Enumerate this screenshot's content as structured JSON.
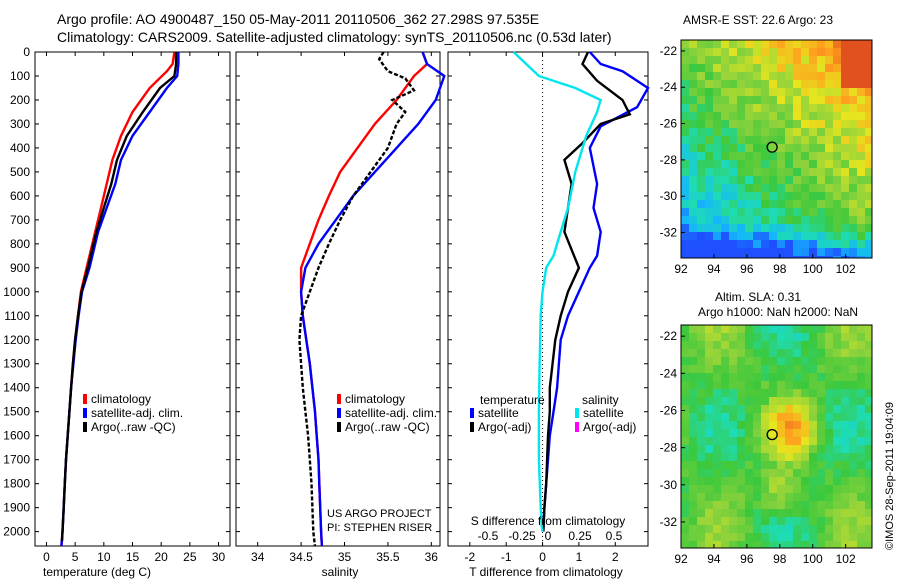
{
  "header": {
    "line1": "Argo profile: AO 4900487_150 05-May-2011 20110506_362 27.298S 97.535E",
    "line2": "Climatology: CARS2009. Satellite-adjusted climatology: synTS_20110506.nc (0.53d later)"
  },
  "side_label": "©IMOS 28-Sep-2011 19:04:09",
  "colors": {
    "climatology": "#ff0000",
    "satellite": "#0000ff",
    "argo": "#000000",
    "satellite_salinity": "#00e5ee",
    "argo_adj_salinity": "#ff00ff"
  },
  "depth_axis": {
    "ticks": [
      0,
      100,
      200,
      300,
      400,
      500,
      600,
      700,
      800,
      900,
      1000,
      1100,
      1200,
      1300,
      1400,
      1500,
      1600,
      1700,
      1800,
      1900,
      2000
    ],
    "labels": [
      "0",
      "100",
      "200",
      "300",
      "400",
      "500",
      "600",
      "700",
      "800",
      "900",
      "1000",
      "1100",
      "1200",
      "1300",
      "1400",
      "1500",
      "1600",
      "1700",
      "1800",
      "1900",
      "2000"
    ],
    "range": [
      0,
      2060
    ]
  },
  "panels": {
    "temperature": {
      "xlabel": "temperature (deg C)",
      "xlim": [
        -2,
        32
      ],
      "ticks": [
        0,
        5,
        10,
        15,
        20,
        25,
        30
      ],
      "tick_labels": [
        "0",
        "5",
        "10",
        "15",
        "20",
        "25",
        "30"
      ],
      "legend": [
        "climatology",
        "satellite-adj. clim.",
        "Argo(..raw -QC)"
      ]
    },
    "salinity": {
      "xlabel": "salinity",
      "xlim": [
        33.75,
        36.1
      ],
      "ticks": [
        34,
        34.5,
        35,
        35.5,
        36
      ],
      "tick_labels": [
        "34",
        "34.5",
        "35",
        "35.5",
        "36"
      ],
      "legend": [
        "climatology",
        "satellite-adj. clim.",
        "Argo(..raw -QC)"
      ],
      "credit": [
        "US ARGO PROJECT",
        "PI: STEPHEN RISER"
      ]
    },
    "difference": {
      "xlabel": "T difference from climatology",
      "xlim": [
        -2.6,
        2.9
      ],
      "ticks": [
        -2,
        -1,
        0,
        1,
        2
      ],
      "tick_labels": [
        "-2",
        "-1",
        "0",
        "1",
        "2"
      ],
      "top_scale_label": "S difference from climatology",
      "top_scale_ticks": [
        "-0.5",
        "-0.25",
        "0",
        "0.25",
        "0.5"
      ],
      "legend_temperature_header": "temperature",
      "legend_salinity_header": "salinity",
      "legend_temperature": [
        "satellite",
        "Argo(-adj)"
      ],
      "legend_salinity": [
        "satellite",
        "Argo(-adj)"
      ]
    }
  },
  "maps": {
    "sst": {
      "title": "AMSR-E SST: 22.6 Argo: 23",
      "x_ticks": [
        "92",
        "94",
        "96",
        "98",
        "100",
        "102"
      ],
      "y_ticks": [
        "-22",
        "-24",
        "-26",
        "-28",
        "-30",
        "-32"
      ]
    },
    "sla": {
      "title_line1": "Altim. SLA: 0.31",
      "title_line2": "Argo h1000: NaN h2000: NaN",
      "x_ticks": [
        "92",
        "94",
        "96",
        "98",
        "100",
        "102"
      ],
      "y_ticks": [
        "-22",
        "-24",
        "-26",
        "-28",
        "-30",
        "-32"
      ]
    },
    "float_position": {
      "lon": 97.535,
      "lat": -27.298
    }
  },
  "chart_data": [
    {
      "type": "line",
      "title": "",
      "xlabel": "temperature (deg C)",
      "ylabel": "",
      "xlim": [
        -2,
        32
      ],
      "ylim": [
        2060,
        0
      ],
      "series": [
        {
          "name": "climatology",
          "color": "#ff0000",
          "x": [
            22.3,
            22.0,
            21.0,
            18.0,
            15.0,
            13.0,
            11.5,
            10.5,
            9.5,
            8.5,
            7.0,
            6.0,
            5.5,
            5.0,
            4.6,
            4.3,
            4.0,
            3.7,
            3.4,
            3.2,
            3.0,
            2.8,
            2.7,
            2.6
          ],
          "y": [
            0,
            50,
            80,
            150,
            250,
            350,
            450,
            550,
            650,
            750,
            900,
            1000,
            1100,
            1200,
            1300,
            1400,
            1500,
            1600,
            1700,
            1800,
            1900,
            2000,
            2030,
            2060
          ]
        },
        {
          "name": "satellite-adj. clim.",
          "color": "#0000ff",
          "x": [
            23.0,
            23.0,
            22.8,
            21.0,
            18.0,
            15.0,
            13.0,
            12.0,
            10.5,
            9.0,
            7.5,
            6.2,
            5.6,
            5.1,
            4.7,
            4.3,
            4.0,
            3.7,
            3.4,
            3.2,
            3.0,
            2.8,
            2.7,
            2.6
          ],
          "y": [
            0,
            50,
            100,
            150,
            250,
            350,
            450,
            550,
            650,
            750,
            900,
            1000,
            1100,
            1200,
            1300,
            1400,
            1500,
            1600,
            1700,
            1800,
            1900,
            2000,
            2030,
            2060
          ]
        },
        {
          "name": "Argo(..raw -QC)",
          "color": "#000000",
          "x": [
            22.6,
            22.6,
            22.3,
            19.8,
            16.8,
            14.0,
            12.3,
            11.3,
            10.0,
            8.7,
            7.2,
            6.1,
            5.5,
            5.0,
            4.6,
            4.3,
            4.0,
            3.7,
            3.4,
            3.2,
            3.0,
            2.8,
            2.7
          ],
          "y": [
            0,
            50,
            100,
            150,
            250,
            350,
            450,
            550,
            650,
            750,
            900,
            1000,
            1100,
            1200,
            1300,
            1400,
            1500,
            1600,
            1700,
            1800,
            1900,
            2000,
            2040
          ]
        }
      ]
    },
    {
      "type": "line",
      "title": "",
      "xlabel": "salinity",
      "ylabel": "",
      "xlim": [
        33.75,
        36.1
      ],
      "ylim": [
        2060,
        0
      ],
      "series": [
        {
          "name": "climatology",
          "color": "#ff0000",
          "x": [
            35.9,
            35.95,
            35.8,
            35.6,
            35.35,
            35.15,
            34.95,
            34.82,
            34.7,
            34.6,
            34.5,
            34.5,
            34.52,
            34.56,
            34.6,
            34.63,
            34.66,
            34.68,
            34.7,
            34.71,
            34.72,
            34.73,
            34.74
          ],
          "y": [
            0,
            50,
            100,
            200,
            300,
            400,
            500,
            600,
            700,
            800,
            900,
            1000,
            1100,
            1200,
            1300,
            1400,
            1500,
            1600,
            1700,
            1800,
            1900,
            2000,
            2060
          ]
        },
        {
          "name": "satellite-adj. clim.",
          "color": "#0000ff",
          "x": [
            35.9,
            35.95,
            36.15,
            36.05,
            35.85,
            35.6,
            35.35,
            35.1,
            34.9,
            34.7,
            34.55,
            34.5,
            34.52,
            34.56,
            34.6,
            34.63,
            34.66,
            34.68,
            34.7,
            34.71,
            34.72,
            34.73,
            34.74
          ],
          "y": [
            0,
            50,
            100,
            200,
            300,
            400,
            500,
            600,
            700,
            800,
            900,
            1000,
            1100,
            1200,
            1300,
            1400,
            1500,
            1600,
            1700,
            1800,
            1900,
            2000,
            2060
          ]
        },
        {
          "name": "Argo(..raw -QC)",
          "color": "#000000",
          "x": [
            35.45,
            35.4,
            35.5,
            35.7,
            35.8,
            35.55,
            35.7,
            35.6,
            35.5,
            35.3,
            35.1,
            34.95,
            34.82,
            34.7,
            34.6,
            34.5,
            34.48,
            34.5,
            34.52,
            34.55,
            34.58,
            34.6,
            34.62,
            34.63,
            34.64,
            34.65,
            34.66
          ],
          "y": [
            0,
            30,
            80,
            110,
            160,
            200,
            250,
            300,
            400,
            500,
            600,
            700,
            800,
            900,
            1000,
            1100,
            1200,
            1300,
            1400,
            1500,
            1600,
            1700,
            1800,
            1900,
            2000,
            2030,
            2060
          ]
        }
      ]
    },
    {
      "type": "line",
      "title": "",
      "xlabel": "T difference from climatology",
      "ylabel": "",
      "xlim": [
        -2.6,
        2.9
      ],
      "ylim": [
        2060,
        0
      ],
      "series": [
        {
          "name": "satellite (temperature)",
          "color": "#0000ff",
          "x": [
            1.3,
            1.6,
            2.2,
            2.9,
            2.6,
            1.6,
            1.3,
            1.5,
            1.4,
            1.6,
            1.5,
            1.3,
            1.0,
            0.7,
            0.5,
            0.4,
            0.3,
            0.2,
            0.1,
            0.05,
            0.02
          ],
          "y": [
            0,
            50,
            80,
            150,
            230,
            310,
            400,
            550,
            650,
            750,
            850,
            900,
            1000,
            1100,
            1200,
            1400,
            1500,
            1600,
            1800,
            1900,
            2000
          ]
        },
        {
          "name": "Argo(-adj) (temperature)",
          "color": "#000000",
          "x": [
            1.25,
            1.1,
            1.5,
            2.2,
            2.4,
            1.6,
            1.1,
            0.6,
            0.8,
            0.7,
            0.6,
            1.0,
            0.7,
            0.5,
            0.35,
            0.2,
            0.2,
            0.15,
            0.1,
            0.05,
            0.02
          ],
          "y": [
            0,
            50,
            120,
            200,
            260,
            300,
            380,
            450,
            550,
            650,
            750,
            900,
            1000,
            1100,
            1200,
            1400,
            1500,
            1600,
            1800,
            1900,
            2000
          ]
        },
        {
          "name": "satellite (salinity)",
          "color": "#00e5ee",
          "x": [
            -0.8,
            -0.1,
            0.9,
            1.6,
            1.5,
            1.2,
            0.9,
            0.7,
            0.5,
            0.3,
            0.1,
            0.0,
            -0.05,
            -0.08,
            -0.1,
            -0.1,
            -0.05,
            -0.02,
            0.0
          ],
          "y": [
            0,
            100,
            150,
            200,
            250,
            350,
            500,
            650,
            750,
            850,
            900,
            1000,
            1100,
            1300,
            1500,
            1700,
            1900,
            1980,
            2000
          ]
        }
      ]
    }
  ]
}
